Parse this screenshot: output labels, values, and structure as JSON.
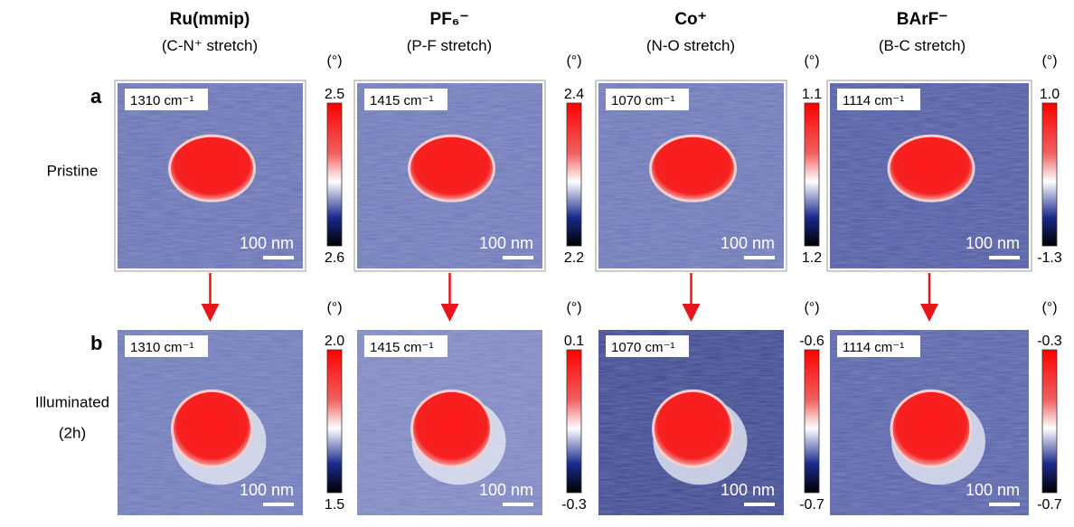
{
  "columns": [
    {
      "title": "Ru(mmip)",
      "subtitle": "(C-N⁺ stretch)"
    },
    {
      "title": "PF₆⁻",
      "subtitle": "(P-F stretch)"
    },
    {
      "title": "Co⁺",
      "subtitle": "(N-O stretch)"
    },
    {
      "title": "BArF⁻",
      "subtitle": "(B-C stretch)"
    }
  ],
  "rows": [
    {
      "panel": "a",
      "label_lines": [
        "Pristine"
      ],
      "images": [
        {
          "wavenumber": "1310 cm⁻¹",
          "scale_bar": "100 nm",
          "unit": "(°)",
          "colorbar_max": "2.5",
          "colorbar_min": "2.6"
        },
        {
          "wavenumber": "1415 cm⁻¹",
          "scale_bar": "100 nm",
          "unit": "(°)",
          "colorbar_max": "2.4",
          "colorbar_min": "2.2"
        },
        {
          "wavenumber": "1070 cm⁻¹",
          "scale_bar": "100 nm",
          "unit": "(°)",
          "colorbar_max": "1.1",
          "colorbar_min": "1.2"
        },
        {
          "wavenumber": "1114 cm⁻¹",
          "scale_bar": "100 nm",
          "unit": "(°)",
          "colorbar_max": "1.0",
          "colorbar_min": "-1.3"
        }
      ]
    },
    {
      "panel": "b",
      "label_lines": [
        "Illuminated",
        "(2h)"
      ],
      "images": [
        {
          "wavenumber": "1310 cm⁻¹",
          "scale_bar": "100 nm",
          "unit": "(°)",
          "colorbar_max": "2.0",
          "colorbar_min": "1.5"
        },
        {
          "wavenumber": "1415 cm⁻¹",
          "scale_bar": "100 nm",
          "unit": "(°)",
          "colorbar_max": "0.1",
          "colorbar_min": "-0.3"
        },
        {
          "wavenumber": "1070 cm⁻¹",
          "scale_bar": "100 nm",
          "unit": "(°)",
          "colorbar_max": "-0.6",
          "colorbar_min": "-0.7"
        },
        {
          "wavenumber": "1114 cm⁻¹",
          "scale_bar": "100 nm",
          "unit": "(°)",
          "colorbar_max": "-0.3",
          "colorbar_min": "-0.7"
        }
      ]
    }
  ]
}
